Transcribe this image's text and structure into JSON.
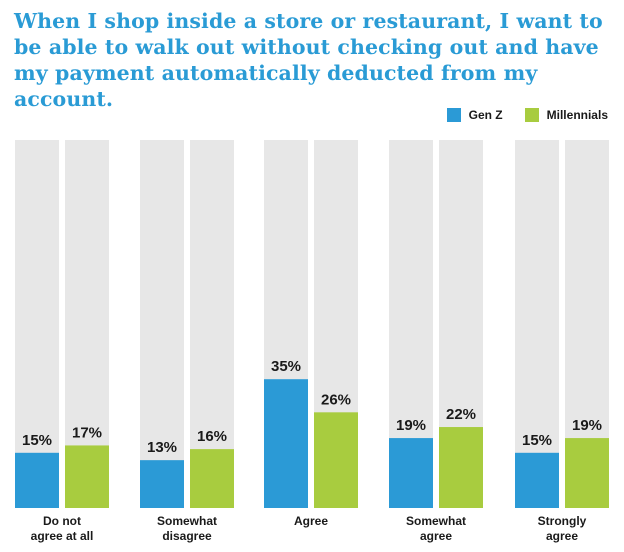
{
  "title": "When I shop inside a store or restaurant, I want to be able to walk out without checking out and have my payment automatically deducted from my account.",
  "chart_data": {
    "type": "bar",
    "categories": [
      [
        "Do not",
        "agree at all"
      ],
      [
        "Somewhat",
        "disagree"
      ],
      [
        "Agree"
      ],
      [
        "Somewhat",
        "agree"
      ],
      [
        "Strongly",
        "agree"
      ]
    ],
    "series": [
      {
        "name": "Gen Z",
        "color": "#2b9ad6",
        "values": [
          15,
          13,
          35,
          19,
          15
        ],
        "labels": [
          "15%",
          "13%",
          "35%",
          "19%",
          "15%"
        ]
      },
      {
        "name": "Millennials",
        "color": "#a8cc3f",
        "values": [
          17,
          16,
          26,
          22,
          19
        ],
        "labels": [
          "17%",
          "16%",
          "26%",
          "22%",
          "19%"
        ]
      }
    ],
    "ylim": [
      0,
      100
    ],
    "background_bar_color": "#e7e7e7",
    "legend_position": "top-right"
  }
}
